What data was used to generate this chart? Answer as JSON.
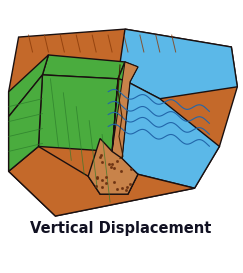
{
  "title": "Vertical Displacement",
  "title_fontsize": 10.5,
  "title_fontweight": "bold",
  "title_color": "#111122",
  "background_color": "#ffffff",
  "colors": {
    "brown_earth": "#c4692a",
    "green_dam": "#4aac3e",
    "blue_water": "#5bb8e8",
    "rock_tan": "#c8834a",
    "outline": "#1a1010",
    "dark_line": "#222222",
    "water_wave": "#2266aa"
  },
  "fig_width": 2.43,
  "fig_height": 2.73,
  "dpi": 100
}
